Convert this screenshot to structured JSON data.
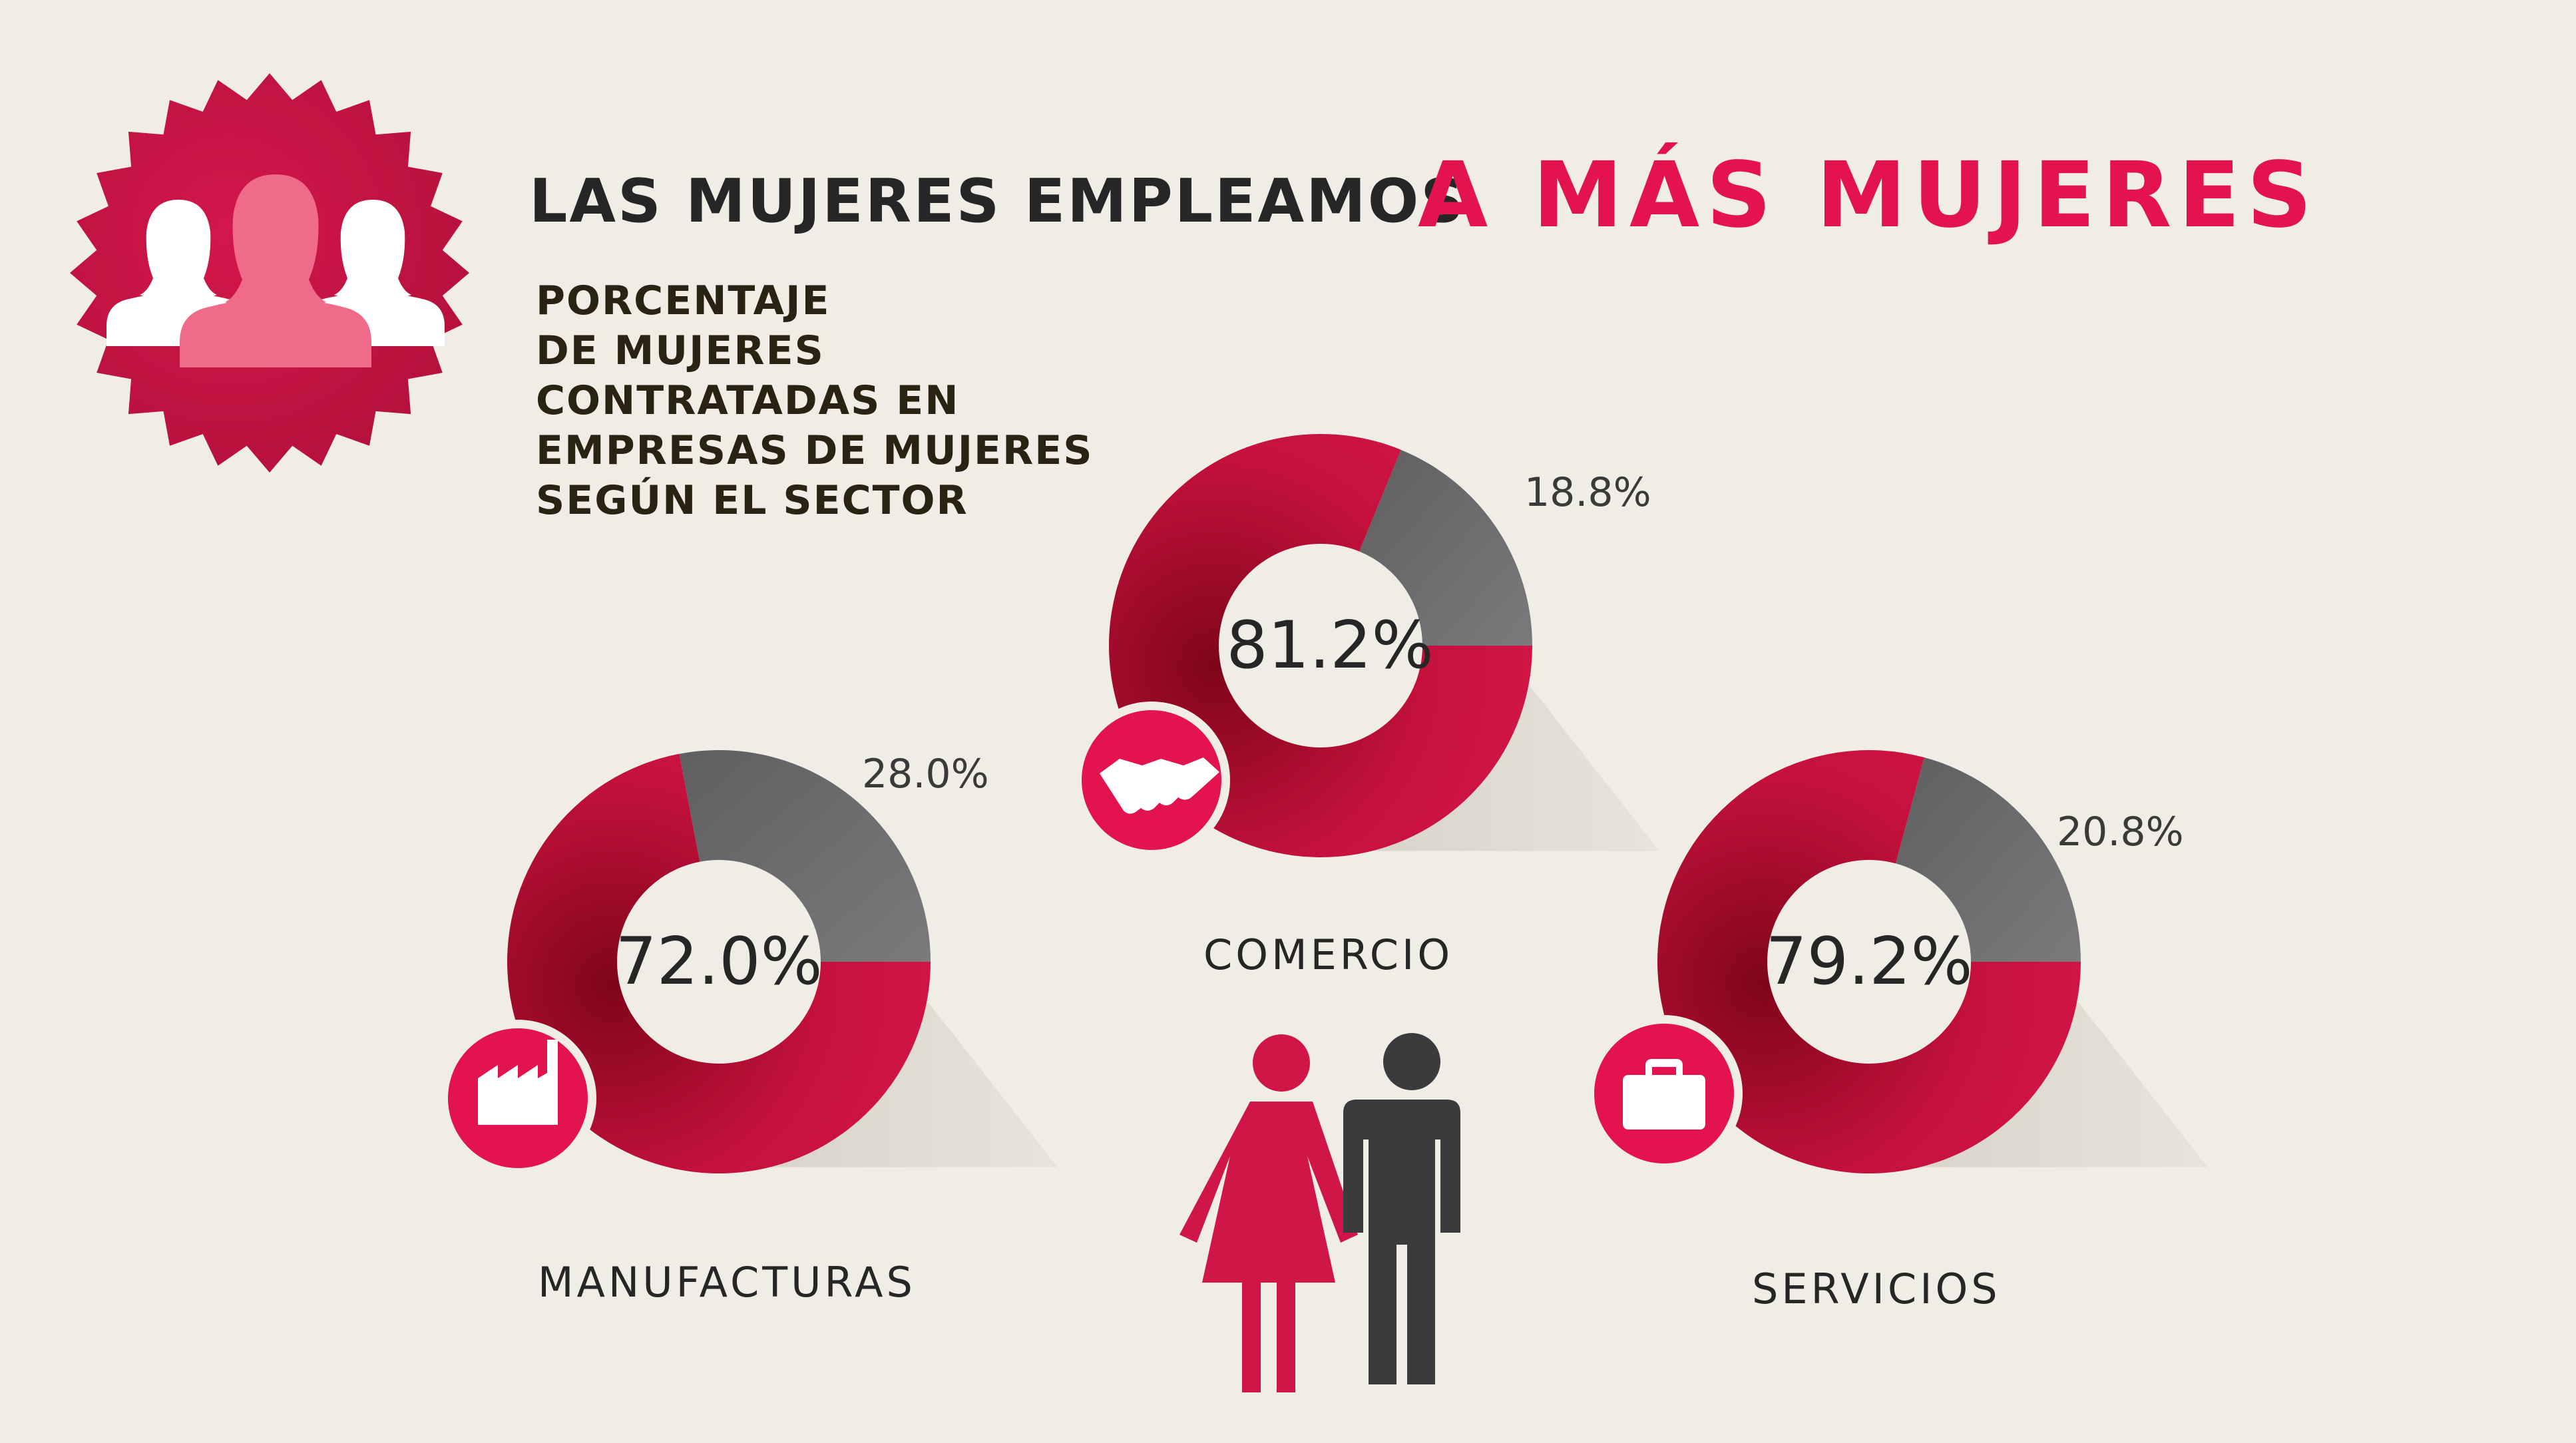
{
  "header": {
    "title_part1": "LAS MUJERES EMPLEAMOS",
    "title_part2": "A MÁS MUJERES",
    "subtitle_lines": [
      "PORCENTAJE",
      "DE MUJERES",
      "CONTRATADAS EN",
      "EMPRESAS DE MUJERES",
      "SEGÚN EL SECTOR"
    ],
    "badge_icon": "three-women-icon"
  },
  "colors": {
    "background": "#f0ede7",
    "accent": "#e2134f",
    "crimson": "#c8123f",
    "crimson_dark": "#8f0620",
    "gray": "#6e6e70",
    "text": "#262626"
  },
  "chart_data": [
    {
      "type": "pie",
      "sector": "MANUFACTURAS",
      "icon": "factory-icon",
      "values": [
        72.0,
        28.0
      ],
      "labels": [
        "72.0%",
        "28.0%"
      ]
    },
    {
      "type": "pie",
      "sector": "COMERCIO",
      "icon": "handshake-icon",
      "values": [
        81.2,
        18.8
      ],
      "labels": [
        "81.2%",
        "18.8%"
      ]
    },
    {
      "type": "pie",
      "sector": "SERVICIOS",
      "icon": "briefcase-icon",
      "values": [
        79.2,
        20.8
      ],
      "labels": [
        "79.2%",
        "20.8%"
      ]
    }
  ],
  "footer_icon": "woman-man-icon"
}
